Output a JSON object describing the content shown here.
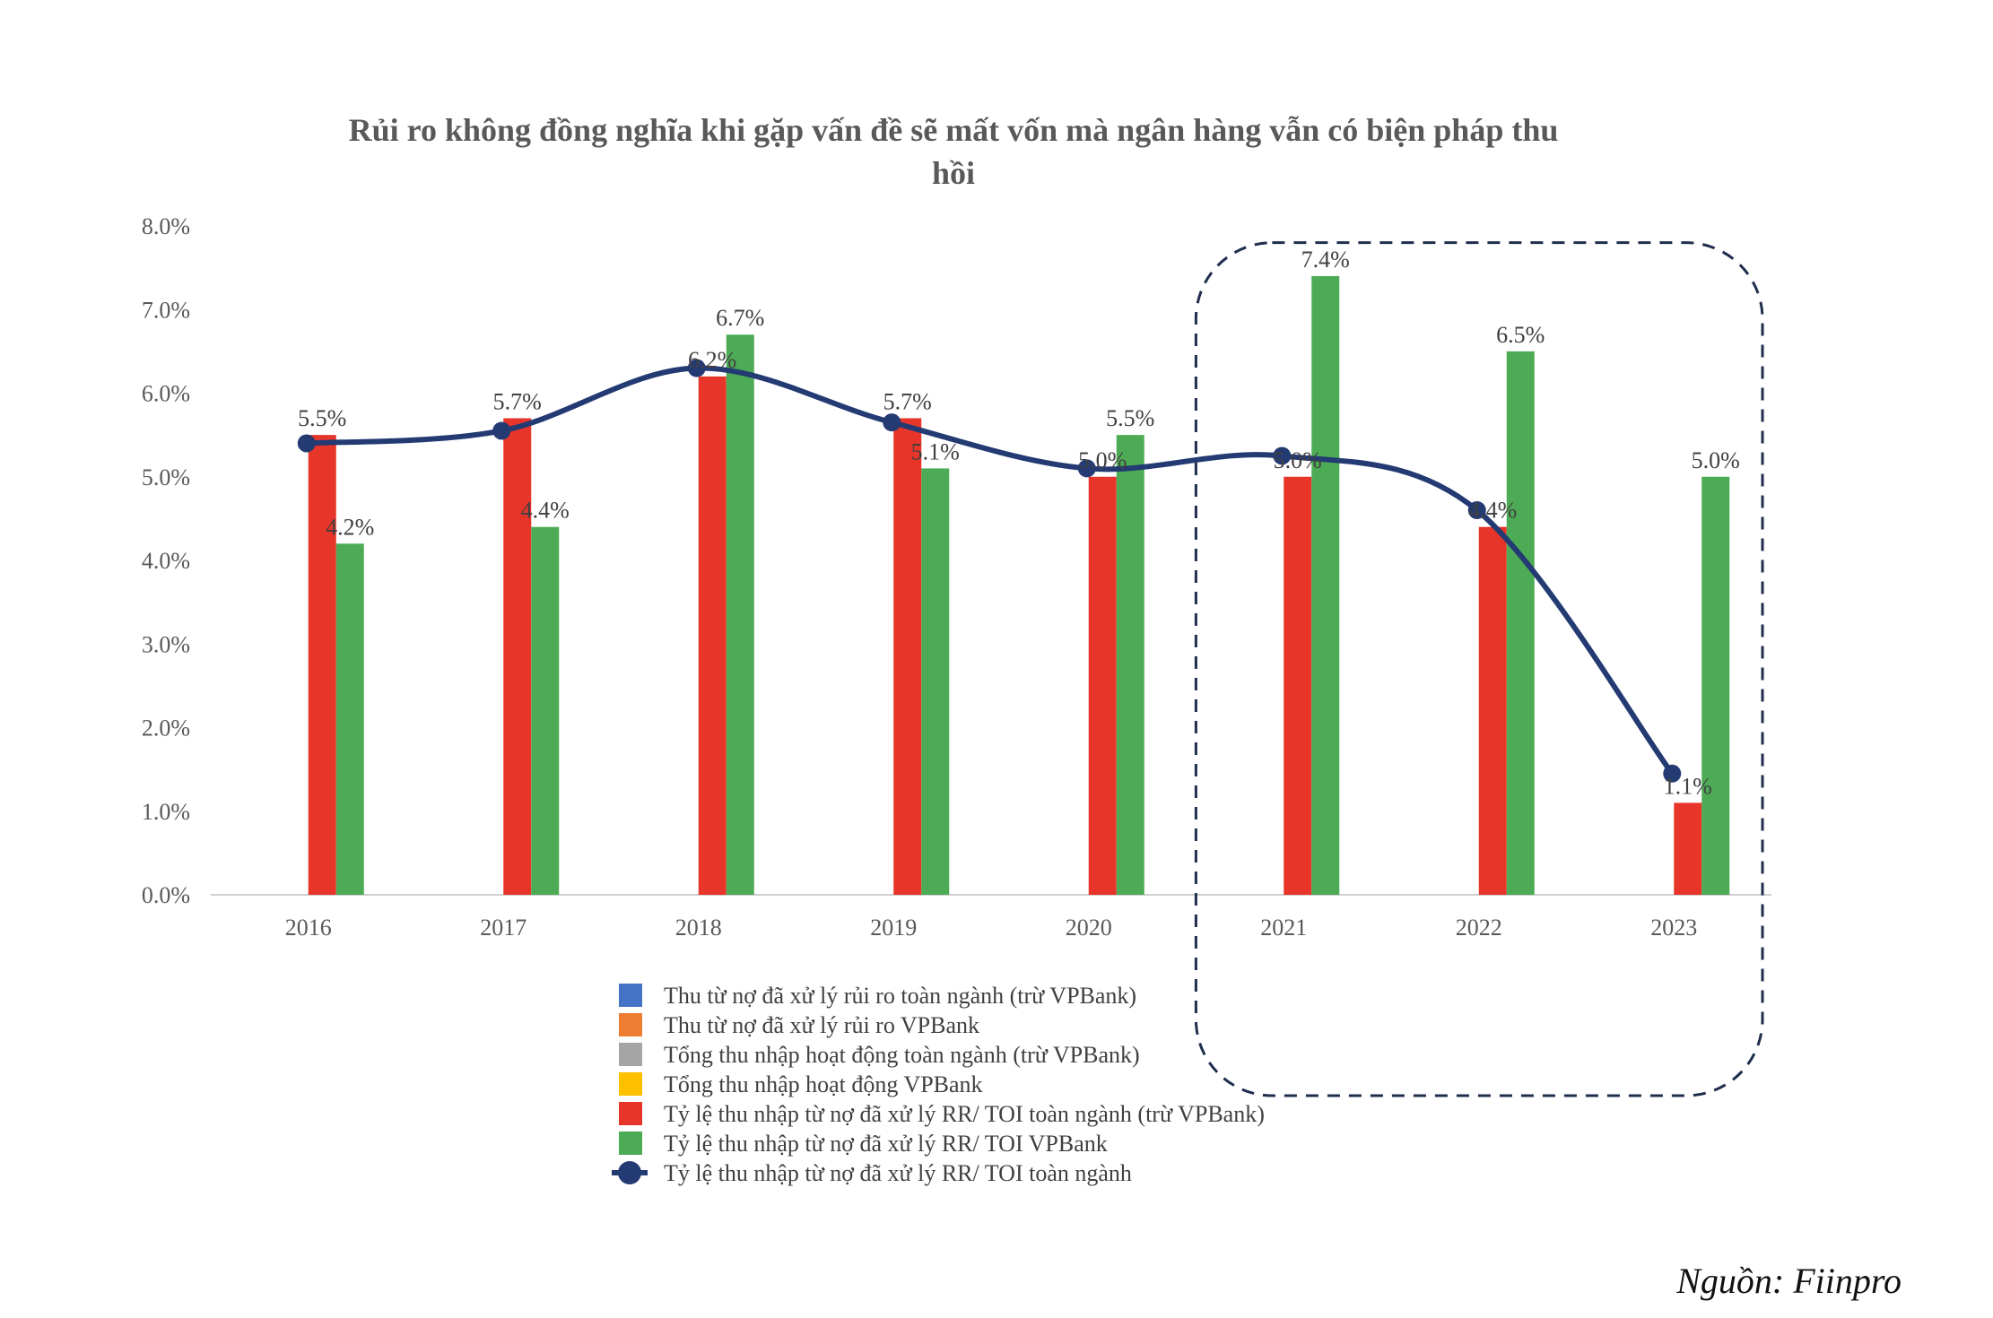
{
  "chart_data": {
    "type": "bar",
    "title": "Rủi ro không đồng nghĩa khi gặp vấn đề sẽ mất vốn mà ngân hàng vẫn có biện pháp thu hồi",
    "title_lines": [
      "Rủi ro không đồng nghĩa khi gặp vấn đề sẽ mất vốn mà ngân hàng vẫn có biện pháp thu",
      "hồi"
    ],
    "categories": [
      "2016",
      "2017",
      "2018",
      "2019",
      "2020",
      "2021",
      "2022",
      "2023"
    ],
    "ylim": [
      0,
      8
    ],
    "yticks": [
      "0.0%",
      "1.0%",
      "2.0%",
      "3.0%",
      "4.0%",
      "5.0%",
      "6.0%",
      "7.0%",
      "8.0%"
    ],
    "grid": false,
    "legend_position": "bottom",
    "highlight_years": [
      "2021",
      "2022",
      "2023"
    ],
    "series": [
      {
        "name": "Tỷ lệ thu nhập từ nợ đã xử lý RR/ TOI toàn ngành (trừ VPBank)",
        "type": "bar",
        "color": "#e8352a",
        "values": [
          5.5,
          5.7,
          6.2,
          5.7,
          5.0,
          5.0,
          4.4,
          1.1
        ],
        "labels": [
          "5.5%",
          "5.7%",
          "6.2%",
          "5.7%",
          "5.0%",
          "5.0%",
          "4.4%",
          "1.1%"
        ]
      },
      {
        "name": "Tỷ lệ thu nhập từ nợ đã xử lý RR/ TOI VPBank",
        "type": "bar",
        "color": "#4dab55",
        "values": [
          4.2,
          4.4,
          6.7,
          5.1,
          5.5,
          7.4,
          6.5,
          5.0
        ],
        "labels": [
          "4.2%",
          "4.4%",
          "6.7%",
          "5.1%",
          "5.5%",
          "7.4%",
          "6.5%",
          "5.0%"
        ]
      },
      {
        "name": "Tỷ lệ thu nhập từ nợ đã xử lý RR/ TOI toàn ngành",
        "type": "line",
        "color": "#233a73",
        "values": [
          5.4,
          5.55,
          6.3,
          5.65,
          5.1,
          5.25,
          4.6,
          1.45
        ]
      }
    ],
    "legend": [
      {
        "name": "Thu từ nợ đã xử lý rủi ro toàn ngành (trừ VPBank)",
        "color": "#4472c4",
        "marker": "square"
      },
      {
        "name": "Thu từ nợ đã xử lý rủi ro VPBank",
        "color": "#ed7d31",
        "marker": "square"
      },
      {
        "name": "Tổng thu nhập hoạt động toàn ngành (trừ VPBank)",
        "color": "#a5a5a5",
        "marker": "square"
      },
      {
        "name": "Tổng thu nhập hoạt động VPBank",
        "color": "#ffc000",
        "marker": "square"
      },
      {
        "name": "Tỷ lệ thu nhập từ nợ đã xử lý RR/ TOI toàn ngành (trừ VPBank)",
        "color": "#e8352a",
        "marker": "square"
      },
      {
        "name": "Tỷ lệ thu nhập từ nợ đã xử lý RR/ TOI VPBank",
        "color": "#4dab55",
        "marker": "square"
      },
      {
        "name": "Tỷ lệ thu nhập từ nợ đã xử lý RR/ TOI toàn ngành",
        "color": "#233a73",
        "marker": "line-dot"
      }
    ]
  },
  "source": "Nguồn: Fiinpro",
  "colors": {
    "axis": "#d0d0d0",
    "highlight_box": "#1f2d4d",
    "text": "#595959"
  }
}
